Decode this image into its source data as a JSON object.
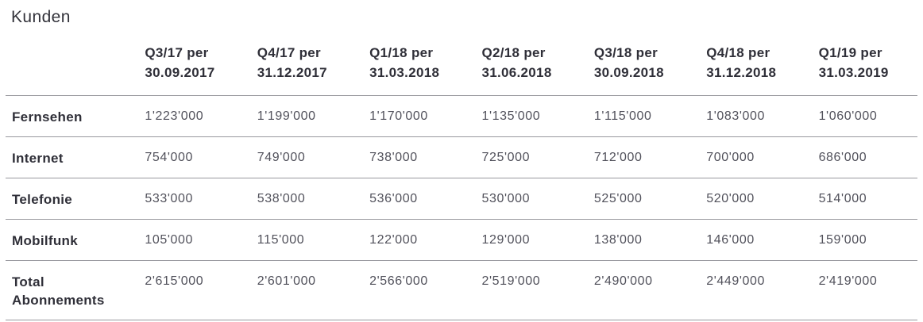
{
  "page": {
    "title": "Kunden"
  },
  "colors": {
    "heading_text": "#33333b",
    "label_text": "#2f2f38",
    "number_text": "#51515b",
    "divider": "#98989e",
    "background": "#ffffff"
  },
  "table": {
    "column_headers": [
      "Q3/17 per\n30.09.2017",
      "Q4/17 per\n31.12.2017",
      "Q1/18 per\n31.03.2018",
      "Q2/18 per\n31.06.2018",
      "Q3/18 per\n30.09.2018",
      "Q4/18 per\n31.12.2018",
      "Q1/19 per\n31.03.2019"
    ],
    "rows": [
      {
        "label": "Fernsehen",
        "values": [
          "1'223'000",
          "1'199'000",
          "1'170'000",
          "1'135'000",
          "1'115'000",
          "1'083'000",
          "1'060'000"
        ]
      },
      {
        "label": "Internet",
        "values": [
          "754'000",
          "749'000",
          "738'000",
          "725'000",
          "712'000",
          "700'000",
          "686'000"
        ]
      },
      {
        "label": "Telefonie",
        "values": [
          "533'000",
          "538'000",
          "536'000",
          "530'000",
          "525'000",
          "520'000",
          "514'000"
        ]
      },
      {
        "label": "Mobilfunk",
        "values": [
          "105'000",
          "115'000",
          "122'000",
          "129'000",
          "138'000",
          "146'000",
          "159'000"
        ]
      },
      {
        "label": "Total Abonnements",
        "values": [
          "2'615'000",
          "2'601'000",
          "2'566'000",
          "2'519'000",
          "2'490'000",
          "2'449'000",
          "2'419'000"
        ]
      }
    ]
  }
}
